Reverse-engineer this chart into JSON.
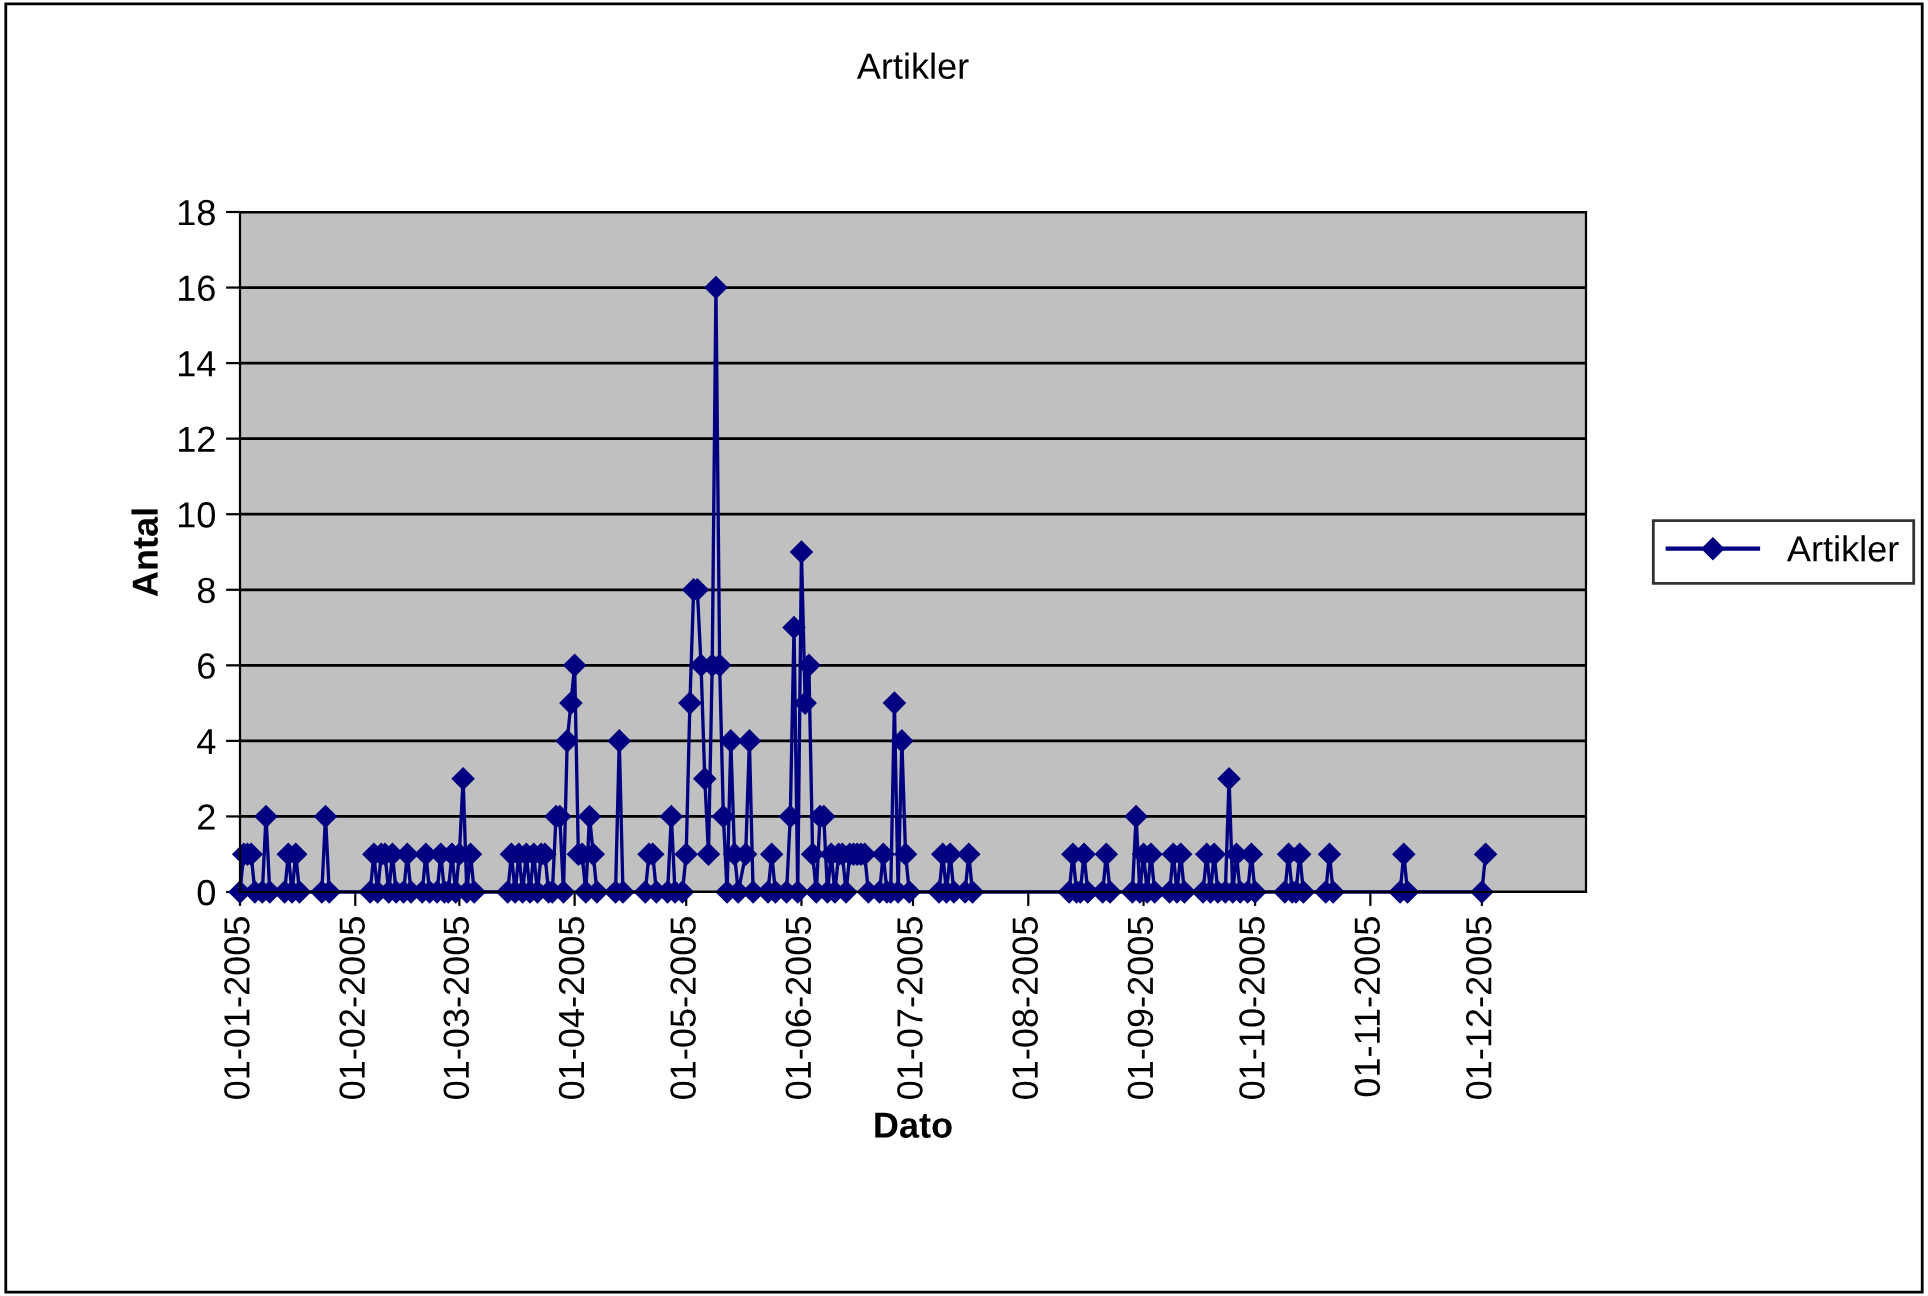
{
  "chart_data": {
    "type": "line",
    "title": "Artikler",
    "xlabel": "Dato",
    "ylabel": "Antal",
    "x": [
      "2005-01-01",
      "2005-01-02",
      "2005-01-03",
      "2005-01-04",
      "2005-01-05",
      "2005-01-07",
      "2005-01-08",
      "2005-01-09",
      "2005-01-13",
      "2005-01-14",
      "2005-01-15",
      "2005-01-16",
      "2005-01-17",
      "2005-01-23",
      "2005-01-24",
      "2005-01-25",
      "2005-02-05",
      "2005-02-06",
      "2005-02-07",
      "2005-02-08",
      "2005-02-09",
      "2005-02-10",
      "2005-02-11",
      "2005-02-12",
      "2005-02-14",
      "2005-02-15",
      "2005-02-16",
      "2005-02-19",
      "2005-02-20",
      "2005-02-21",
      "2005-02-23",
      "2005-02-24",
      "2005-02-25",
      "2005-02-26",
      "2005-02-27",
      "2005-02-28",
      "2005-03-01",
      "2005-03-02",
      "2005-03-03",
      "2005-03-04",
      "2005-03-05",
      "2005-03-14",
      "2005-03-15",
      "2005-03-16",
      "2005-03-17",
      "2005-03-18",
      "2005-03-19",
      "2005-03-20",
      "2005-03-21",
      "2005-03-22",
      "2005-03-23",
      "2005-03-24",
      "2005-03-25",
      "2005-03-26",
      "2005-03-27",
      "2005-03-28",
      "2005-03-29",
      "2005-03-30",
      "2005-03-31",
      "2005-04-01",
      "2005-04-02",
      "2005-04-03",
      "2005-04-04",
      "2005-04-05",
      "2005-04-06",
      "2005-04-07",
      "2005-04-12",
      "2005-04-13",
      "2005-04-14",
      "2005-04-20",
      "2005-04-21",
      "2005-04-22",
      "2005-04-23",
      "2005-04-26",
      "2005-04-27",
      "2005-04-28",
      "2005-04-30",
      "2005-05-01",
      "2005-05-02",
      "2005-05-03",
      "2005-05-04",
      "2005-05-05",
      "2005-05-06",
      "2005-05-07",
      "2005-05-08",
      "2005-05-09",
      "2005-05-10",
      "2005-05-11",
      "2005-05-12",
      "2005-05-13",
      "2005-05-14",
      "2005-05-15",
      "2005-05-17",
      "2005-05-18",
      "2005-05-19",
      "2005-05-23",
      "2005-05-24",
      "2005-05-25",
      "2005-05-28",
      "2005-05-29",
      "2005-05-30",
      "2005-05-31",
      "2005-06-01",
      "2005-06-02",
      "2005-06-03",
      "2005-06-04",
      "2005-06-05",
      "2005-06-06",
      "2005-06-07",
      "2005-06-08",
      "2005-06-09",
      "2005-06-10",
      "2005-06-11",
      "2005-06-12",
      "2005-06-13",
      "2005-06-14",
      "2005-06-15",
      "2005-06-16",
      "2005-06-17",
      "2005-06-18",
      "2005-06-19",
      "2005-06-22",
      "2005-06-23",
      "2005-06-24",
      "2005-06-25",
      "2005-06-26",
      "2005-06-27",
      "2005-06-28",
      "2005-06-29",
      "2005-06-30",
      "2005-07-08",
      "2005-07-09",
      "2005-07-10",
      "2005-07-11",
      "2005-07-12",
      "2005-07-15",
      "2005-07-16",
      "2005-07-17",
      "2005-08-12",
      "2005-08-13",
      "2005-08-14",
      "2005-08-15",
      "2005-08-16",
      "2005-08-17",
      "2005-08-21",
      "2005-08-22",
      "2005-08-23",
      "2005-08-29",
      "2005-08-30",
      "2005-08-31",
      "2005-09-01",
      "2005-09-02",
      "2005-09-03",
      "2005-09-04",
      "2005-09-08",
      "2005-09-09",
      "2005-09-10",
      "2005-09-11",
      "2005-09-12",
      "2005-09-17",
      "2005-09-18",
      "2005-09-19",
      "2005-09-20",
      "2005-09-21",
      "2005-09-23",
      "2005-09-24",
      "2005-09-25",
      "2005-09-26",
      "2005-09-27",
      "2005-09-29",
      "2005-09-30",
      "2005-10-01",
      "2005-10-09",
      "2005-10-10",
      "2005-10-11",
      "2005-10-12",
      "2005-10-13",
      "2005-10-14",
      "2005-10-20",
      "2005-10-21",
      "2005-10-22",
      "2005-11-09",
      "2005-11-10",
      "2005-11-11",
      "2005-12-01",
      "2005-12-02"
    ],
    "series": [
      {
        "name": "Artikler",
        "color": "#000080",
        "values": [
          0,
          1,
          1,
          1,
          0,
          0,
          2,
          0,
          0,
          1,
          0,
          1,
          0,
          0,
          2,
          0,
          0,
          1,
          0,
          1,
          1,
          0,
          1,
          0,
          0,
          1,
          0,
          0,
          1,
          0,
          0,
          1,
          0,
          0,
          1,
          0,
          1,
          3,
          0,
          1,
          0,
          0,
          1,
          0,
          1,
          0,
          1,
          0,
          1,
          0,
          1,
          1,
          0,
          0,
          2,
          2,
          0,
          4,
          5,
          6,
          1,
          1,
          0,
          2,
          1,
          0,
          0,
          4,
          0,
          0,
          1,
          1,
          0,
          0,
          2,
          0,
          0,
          1,
          5,
          8,
          8,
          6,
          3,
          1,
          6,
          16,
          6,
          2,
          0,
          4,
          1,
          0,
          1,
          4,
          0,
          0,
          1,
          0,
          0,
          2,
          7,
          0,
          9,
          5,
          6,
          1,
          0,
          2,
          2,
          0,
          1,
          0,
          1,
          1,
          0,
          1,
          1,
          1,
          1,
          1,
          0,
          0,
          1,
          0,
          0,
          5,
          0,
          4,
          1,
          0,
          0,
          1,
          0,
          1,
          0,
          0,
          1,
          0,
          0,
          1,
          0,
          0,
          1,
          0,
          0,
          1,
          0,
          0,
          2,
          0,
          1,
          0,
          1,
          0,
          0,
          1,
          0,
          1,
          0,
          0,
          1,
          0,
          1,
          0,
          0,
          3,
          0,
          1,
          0,
          0,
          1,
          0,
          0,
          1,
          0,
          0,
          1,
          0,
          0,
          1,
          0,
          0,
          1,
          0,
          0,
          1
        ]
      }
    ],
    "xlim": [
      "2005-01-01",
      "2005-12-29"
    ],
    "xticks": [
      {
        "value": "2005-01-01",
        "label": "01-01-2005"
      },
      {
        "value": "2005-02-01",
        "label": "01-02-2005"
      },
      {
        "value": "2005-03-01",
        "label": "01-03-2005"
      },
      {
        "value": "2005-04-01",
        "label": "01-04-2005"
      },
      {
        "value": "2005-05-01",
        "label": "01-05-2005"
      },
      {
        "value": "2005-06-01",
        "label": "01-06-2005"
      },
      {
        "value": "2005-07-01",
        "label": "01-07-2005"
      },
      {
        "value": "2005-08-01",
        "label": "01-08-2005"
      },
      {
        "value": "2005-09-01",
        "label": "01-09-2005"
      },
      {
        "value": "2005-10-01",
        "label": "01-10-2005"
      },
      {
        "value": "2005-11-01",
        "label": "01-11-2005"
      },
      {
        "value": "2005-12-01",
        "label": "01-12-2005"
      }
    ],
    "ylim": [
      0,
      18
    ],
    "yticks": [
      0,
      2,
      4,
      6,
      8,
      10,
      12,
      14,
      16,
      18
    ],
    "grid": "y",
    "legend": "right",
    "marker": "diamond",
    "line_style": "solid"
  }
}
